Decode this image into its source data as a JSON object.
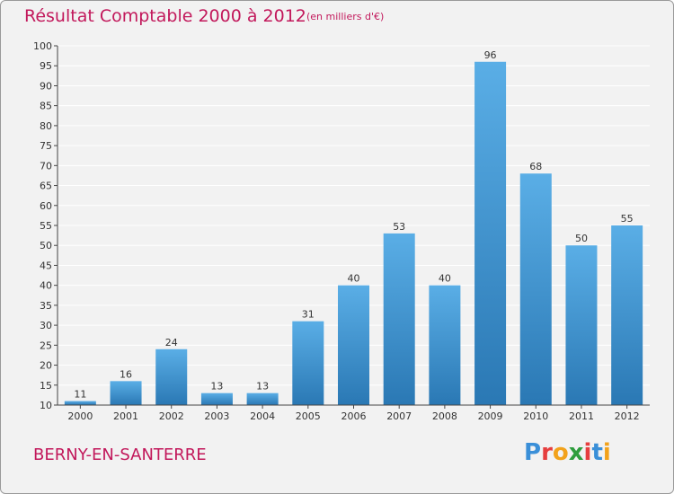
{
  "header": {
    "title": "Résultat Comptable 2000 à 2012",
    "unit": "(en milliers d'€)"
  },
  "footer": {
    "commune": "BERNY-EN-SANTERRE",
    "logo_letters": [
      "P",
      "r",
      "o",
      "x",
      "i",
      "t",
      "i"
    ],
    "logo_colors": [
      "#3a8fd8",
      "#e63e3e",
      "#f2a21b",
      "#2e9d3d",
      "#e63e3e",
      "#3a8fd8",
      "#f2a21b"
    ]
  },
  "colors": {
    "bar_top": "#5aaee6",
    "bar_bottom": "#2a78b4",
    "grid": "#ffffff",
    "axis": "#444444"
  },
  "chart_data": {
    "type": "bar",
    "title": "Résultat Comptable 2000 à 2012",
    "subtitle": "(en milliers d'€)",
    "xlabel": "",
    "ylabel": "",
    "categories": [
      "2000",
      "2001",
      "2002",
      "2003",
      "2004",
      "2005",
      "2006",
      "2007",
      "2008",
      "2009",
      "2010",
      "2011",
      "2012"
    ],
    "values": [
      11,
      16,
      24,
      13,
      13,
      31,
      40,
      53,
      40,
      96,
      68,
      50,
      55
    ],
    "ylim": [
      10,
      100
    ],
    "yticks": [
      10,
      15,
      20,
      25,
      30,
      35,
      40,
      45,
      50,
      55,
      60,
      65,
      70,
      75,
      80,
      85,
      90,
      95,
      100
    ],
    "grid": true
  }
}
